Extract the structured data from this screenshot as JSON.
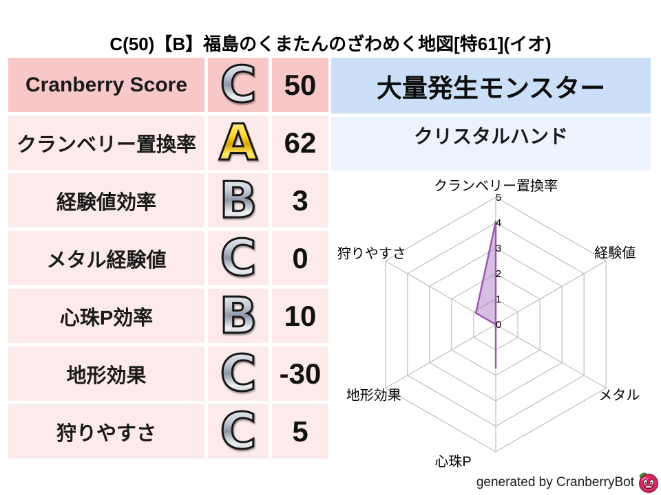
{
  "title": "C(50)【B】福島のくまたんのざわめく地図[特61](イオ)",
  "stats_table": {
    "rows": [
      {
        "label": "Cranberry Score",
        "grade": "C",
        "value": "50"
      },
      {
        "label": "クランベリー置換率",
        "grade": "A",
        "value": "62"
      },
      {
        "label": "経験値効率",
        "grade": "B",
        "value": "3"
      },
      {
        "label": "メタル経験値",
        "grade": "C",
        "value": "0"
      },
      {
        "label": "心珠P効率",
        "grade": "B",
        "value": "10"
      },
      {
        "label": "地形効果",
        "grade": "C",
        "value": "-30"
      },
      {
        "label": "狩りやすさ",
        "grade": "C",
        "value": "5"
      }
    ]
  },
  "monster_panel": {
    "header": "大量発生モンスター",
    "monster_name": "クリスタルハンド"
  },
  "chart_data": {
    "type": "radar",
    "axes": [
      "クランベリー置換率",
      "経験値",
      "メタル",
      "心珠P",
      "地形効果",
      "狩りやすさ"
    ],
    "values": [
      4.05,
      0,
      0,
      1.7,
      0,
      0.9
    ],
    "axis_range": [
      0,
      5
    ],
    "tick_labels": [
      "0",
      "1",
      "2",
      "3",
      "4",
      "5"
    ],
    "grid": "hexagon-rings-and-spokes",
    "grid_color": "#b3b0b3",
    "fill_color": "#a76ebe",
    "fill_opacity": 0.45,
    "line_color": "#9c57b3"
  },
  "footer": {
    "credit": "generated by CranberryBot",
    "logo": "cranberry-bot-icon",
    "berry_color": "#d62963",
    "leaf_color": "#3f9b3f"
  },
  "colors": {
    "row_highlight": "#f8c7c7",
    "row_light": "#fdeaea",
    "header_blue": "#cbe0f8",
    "panel_blue": "#edf3fc"
  }
}
